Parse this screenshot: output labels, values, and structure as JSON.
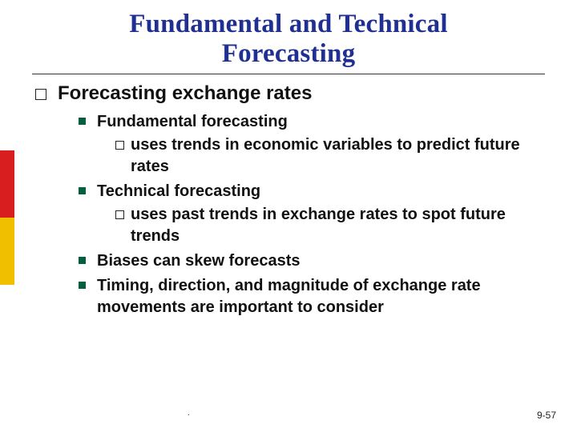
{
  "accent": {
    "title_color": "#1f2f92",
    "lvl2_bullet_color": "#005f3f",
    "side_red": "#d81e1e",
    "side_yellow": "#f0c000"
  },
  "title": {
    "line1": "Fundamental and Technical",
    "line2": "Forecasting"
  },
  "body": {
    "heading": "Forecasting exchange rates",
    "items": [
      {
        "label": "Fundamental forecasting",
        "sub": "uses trends in economic variables to predict future rates"
      },
      {
        "label": "Technical forecasting",
        "sub": "uses past trends in exchange rates to spot future trends"
      },
      {
        "label": "Biases can skew forecasts"
      },
      {
        "label": "Timing, direction, and magnitude of exchange rate movements are important to consider"
      }
    ]
  },
  "footer": {
    "dot": ".",
    "page": "9-57"
  }
}
